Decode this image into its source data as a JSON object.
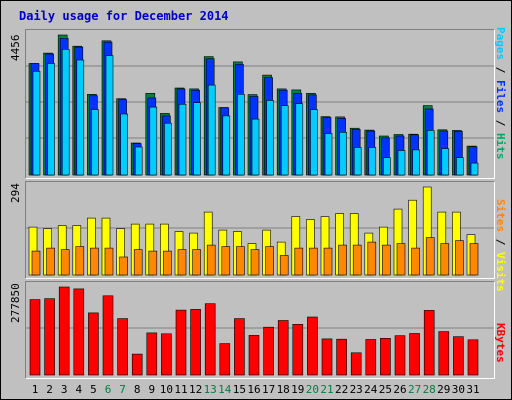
{
  "chart_data": {
    "type": "bar",
    "title": "Daily usage for December 2014",
    "days": [
      "1",
      "2",
      "3",
      "4",
      "5",
      "6",
      "7",
      "8",
      "9",
      "10",
      "11",
      "12",
      "13",
      "14",
      "15",
      "16",
      "17",
      "18",
      "19",
      "20",
      "21",
      "22",
      "23",
      "24",
      "25",
      "26",
      "27",
      "28",
      "29",
      "30",
      "31"
    ],
    "weekend_days": [
      "6",
      "7",
      "13",
      "14",
      "20",
      "21",
      "27",
      "28"
    ],
    "panels": [
      {
        "name": "top",
        "max_label": "4456",
        "legend": [
          {
            "text": "Pages",
            "color": "#00ccff"
          },
          {
            "text": " / ",
            "color": "#000000"
          },
          {
            "text": "Files",
            "color": "#0033ff"
          },
          {
            "text": " / ",
            "color": "#000000"
          },
          {
            "text": "Hits",
            "color": "#00aa66"
          }
        ],
        "ymax": 4456,
        "series": [
          {
            "name": "Hits",
            "color": "#008040",
            "values": [
              3550,
              3880,
              4456,
              4100,
              2570,
              4270,
              2430,
              1020,
              2600,
              1960,
              2770,
              2740,
              3770,
              2150,
              3600,
              2560,
              3180,
              2740,
              2710,
              2600,
              1860,
              1850,
              1490,
              1430,
              1240,
              1290,
              1300,
              2210,
              1440,
              1420,
              920
            ]
          },
          {
            "name": "Files",
            "color": "#0033ff",
            "values": [
              3550,
              3850,
              4350,
              4070,
              2520,
              4230,
              2400,
              1000,
              2450,
              1880,
              2740,
              2700,
              3700,
              2140,
              3520,
              2500,
              3100,
              2700,
              2600,
              2550,
              1830,
              1800,
              1450,
              1400,
              1180,
              1240,
              1280,
              2100,
              1400,
              1390,
              900
            ]
          },
          {
            "name": "Pages",
            "color": "#00ccff",
            "values": [
              3300,
              3550,
              4000,
              3660,
              2080,
              3800,
              1940,
              890,
              2160,
              1650,
              2250,
              2300,
              2860,
              1880,
              2570,
              1780,
              2370,
              2210,
              2270,
              2080,
              1320,
              1360,
              880,
              880,
              550,
              780,
              800,
              1420,
              840,
              550,
              380
            ]
          }
        ]
      },
      {
        "name": "middle",
        "max_label": "294",
        "legend": [
          {
            "text": "Sites",
            "color": "#ff8800"
          },
          {
            "text": " / ",
            "color": "#000000"
          },
          {
            "text": "Visits",
            "color": "#ffff00"
          }
        ],
        "ymax": 294,
        "series": [
          {
            "name": "Visits",
            "color": "#ffff00",
            "values": [
              160,
              155,
              165,
              165,
              190,
              190,
              155,
              170,
              170,
              170,
              145,
              140,
              210,
              150,
              145,
              105,
              150,
              110,
              195,
              185,
              195,
              205,
              205,
              140,
              160,
              220,
              250,
              294,
              210,
              210,
              135
            ]
          },
          {
            "name": "Sites",
            "color": "#ff8800",
            "values": [
              80,
              90,
              85,
              95,
              90,
              90,
              60,
              85,
              80,
              80,
              85,
              85,
              100,
              95,
              95,
              85,
              95,
              65,
              90,
              90,
              90,
              100,
              100,
              110,
              100,
              105,
              90,
              125,
              105,
              115,
              105
            ]
          }
        ]
      },
      {
        "name": "bottom",
        "max_label": "277850",
        "legend": [
          {
            "text": "KBytes",
            "color": "#ff0000"
          }
        ],
        "ymax": 277850,
        "series": [
          {
            "name": "KBytes",
            "color": "#ff0000",
            "values": [
              238000,
              241000,
              277850,
              272000,
              196000,
              250000,
              178000,
              66000,
              133000,
              130000,
              205000,
              207000,
              225000,
              99000,
              178000,
              125000,
              151000,
              172000,
              160000,
              183000,
              114000,
              113000,
              70000,
              112000,
              116000,
              124000,
              131000,
              204000,
              137000,
              121000,
              111000
            ]
          }
        ]
      }
    ]
  }
}
